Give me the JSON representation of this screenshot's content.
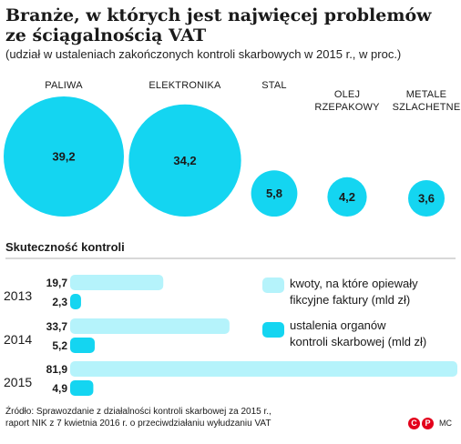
{
  "title": "Branże, w których jest najwięcej problemów ze ściągalnością VAT",
  "subtitle": "(udział w ustaleniach zakończonych kontroli skarbowych w 2015 r., w proc.)",
  "colors": {
    "light": "#b5f3fb",
    "accent": "#14d5f1",
    "text": "#1a1a1a"
  },
  "chart_data": [
    {
      "type": "bubble",
      "title": "",
      "categories": [
        {
          "label_lines": [
            "PALIWA"
          ],
          "value": 39.2,
          "value_label": "39,2"
        },
        {
          "label_lines": [
            "ELEKTRONIKA"
          ],
          "value": 34.2,
          "value_label": "34,2"
        },
        {
          "label_lines": [
            "STAL"
          ],
          "value": 5.8,
          "value_label": "5,8"
        },
        {
          "label_lines": [
            "OLEJ",
            "RZEPAKOWY"
          ],
          "value": 4.2,
          "value_label": "4,2"
        },
        {
          "label_lines": [
            "METALE",
            "SZLACHETNE"
          ],
          "value": 3.6,
          "value_label": "3,6"
        }
      ]
    },
    {
      "type": "bar",
      "orientation": "horizontal",
      "title": "Skuteczność kontroli",
      "categories": [
        "2013",
        "2014",
        "2015"
      ],
      "series": [
        {
          "name": "kwoty, na które opiewały fikcyjne faktury (mld zł)",
          "legend_lines": [
            "kwoty, na które opiewały",
            "fikcyjne faktury (mld zł)"
          ],
          "color": "#b5f3fb",
          "values": [
            19.7,
            33.7,
            81.9
          ],
          "value_labels": [
            "19,7",
            "33,7",
            "81,9"
          ]
        },
        {
          "name": "ustalenia organów kontroli skarbowej (mld zł)",
          "legend_lines": [
            "ustalenia organów",
            "kontroli skarbowej (mld zł)"
          ],
          "color": "#14d5f1",
          "values": [
            2.3,
            5.2,
            4.9
          ],
          "value_labels": [
            "2,3",
            "5,2",
            "4,9"
          ]
        }
      ],
      "xlim": [
        0,
        81.9
      ]
    }
  ],
  "source": {
    "line1": "Źródło: Sprawozdanie z działalności kontroli skarbowej za 2015 r.,",
    "line2": "raport NIK z 7 kwietnia 2016 r. o przeciwdziałaniu wyłudzaniu VAT"
  },
  "logo": {
    "text": "MC"
  }
}
